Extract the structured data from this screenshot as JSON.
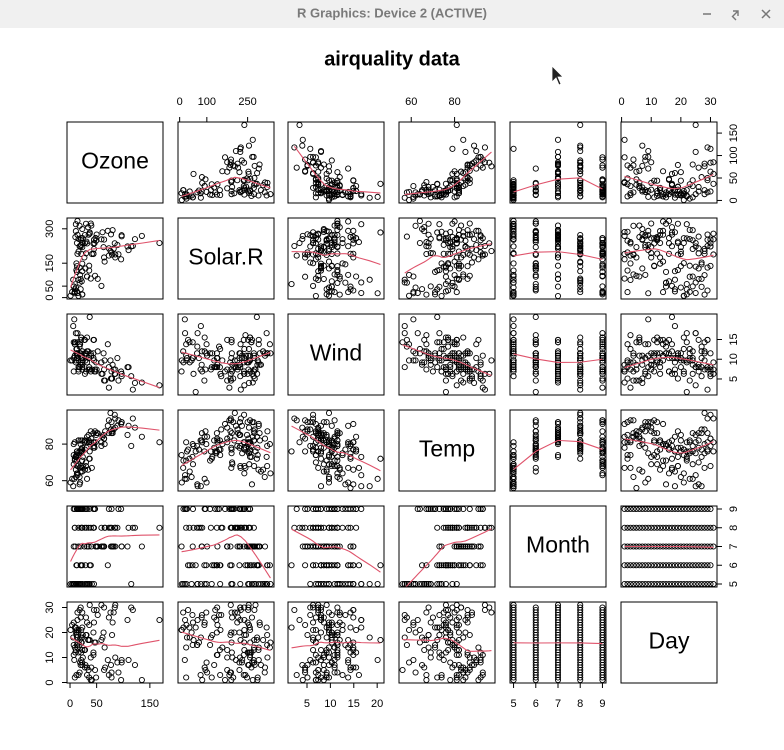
{
  "window": {
    "title": "R Graphics: Device 2 (ACTIVE)"
  },
  "chart_data": {
    "type": "pairs",
    "title": "airquality data",
    "point_color": "#000000",
    "smooth_color": "#df536b",
    "variables": [
      {
        "name": "Ozone",
        "lim": [
          -5.68,
          174.68
        ],
        "xticks": [
          0,
          50,
          150
        ],
        "yticks": [
          0,
          50,
          100,
          150
        ],
        "values": [
          41,
          36,
          12,
          18,
          null,
          28,
          23,
          19,
          8,
          null,
          7,
          16,
          11,
          14,
          18,
          14,
          34,
          6,
          30,
          11,
          1,
          11,
          4,
          32,
          null,
          null,
          null,
          23,
          45,
          115,
          37,
          null,
          null,
          null,
          null,
          null,
          null,
          29,
          null,
          71,
          39,
          null,
          null,
          23,
          null,
          null,
          21,
          37,
          20,
          12,
          13,
          null,
          null,
          null,
          null,
          null,
          null,
          null,
          null,
          null,
          null,
          135,
          49,
          32,
          null,
          64,
          40,
          77,
          97,
          97,
          85,
          null,
          10,
          27,
          null,
          7,
          48,
          35,
          61,
          79,
          63,
          16,
          null,
          null,
          80,
          108,
          20,
          52,
          82,
          50,
          64,
          59,
          39,
          9,
          16,
          78,
          35,
          66,
          122,
          89,
          110,
          null,
          null,
          44,
          28,
          65,
          null,
          22,
          59,
          23,
          31,
          44,
          21,
          9,
          null,
          45,
          168,
          73,
          null,
          76,
          118,
          84,
          85,
          96,
          78,
          73,
          91,
          47,
          32,
          20,
          23,
          21,
          24,
          44,
          21,
          28,
          9,
          13,
          46,
          18,
          13,
          24,
          16,
          13,
          23,
          36,
          7,
          14,
          30,
          null,
          14,
          18,
          20
        ]
      },
      {
        "name": "Solar.R",
        "lim": [
          -6.08,
          347.08
        ],
        "xticks": [
          0,
          100,
          250
        ],
        "yticks": [
          0,
          50,
          150,
          300
        ],
        "values": [
          190,
          118,
          149,
          313,
          null,
          null,
          299,
          99,
          19,
          194,
          null,
          256,
          290,
          274,
          65,
          334,
          307,
          78,
          322,
          44,
          8,
          320,
          25,
          92,
          66,
          266,
          null,
          13,
          252,
          223,
          279,
          286,
          287,
          242,
          186,
          220,
          264,
          127,
          273,
          291,
          323,
          259,
          250,
          148,
          332,
          322,
          191,
          284,
          37,
          120,
          137,
          150,
          59,
          91,
          250,
          135,
          127,
          47,
          98,
          31,
          138,
          269,
          248,
          236,
          101,
          175,
          314,
          276,
          267,
          272,
          175,
          139,
          264,
          175,
          291,
          48,
          260,
          274,
          285,
          187,
          220,
          7,
          258,
          295,
          294,
          223,
          81,
          82,
          213,
          275,
          253,
          254,
          83,
          24,
          77,
          null,
          null,
          null,
          255,
          229,
          207,
          222,
          137,
          192,
          273,
          157,
          64,
          71,
          51,
          115,
          244,
          190,
          259,
          36,
          255,
          212,
          238,
          215,
          153,
          203,
          225,
          237,
          188,
          167,
          197,
          183,
          189,
          95,
          92,
          252,
          220,
          230,
          259,
          236,
          259,
          238,
          24,
          112,
          237,
          224,
          27,
          238,
          201,
          238,
          14,
          139,
          49,
          20,
          193,
          145,
          191,
          131,
          223
        ]
      },
      {
        "name": "Wind",
        "lim": [
          0.94,
          21.46
        ],
        "xticks": [
          5,
          10,
          15,
          20
        ],
        "yticks": [
          5,
          10,
          15
        ],
        "values": [
          7.4,
          8.0,
          12.6,
          11.5,
          14.3,
          14.9,
          8.6,
          13.8,
          20.1,
          8.6,
          6.9,
          9.7,
          9.2,
          10.9,
          13.2,
          11.5,
          12.0,
          18.4,
          11.5,
          9.7,
          9.7,
          16.6,
          9.7,
          12.0,
          16.6,
          14.9,
          8.0,
          12.0,
          14.9,
          5.7,
          7.4,
          8.6,
          9.7,
          16.1,
          9.2,
          8.6,
          14.3,
          9.7,
          6.9,
          13.8,
          11.5,
          10.9,
          9.2,
          8.0,
          13.8,
          11.5,
          14.9,
          20.7,
          9.2,
          11.5,
          10.3,
          6.3,
          1.7,
          4.6,
          6.3,
          8.0,
          8.0,
          10.3,
          11.5,
          14.9,
          8.0,
          4.1,
          9.2,
          9.2,
          10.9,
          4.6,
          10.9,
          5.1,
          6.3,
          5.7,
          7.4,
          8.6,
          14.3,
          14.9,
          14.9,
          14.3,
          6.9,
          10.3,
          6.3,
          5.1,
          11.5,
          6.9,
          9.7,
          11.5,
          8.6,
          8.0,
          8.6,
          12.0,
          7.4,
          7.4,
          7.4,
          9.2,
          6.9,
          13.8,
          7.4,
          6.9,
          7.4,
          4.6,
          4.0,
          10.3,
          8.0,
          8.6,
          11.5,
          11.5,
          11.5,
          9.7,
          11.5,
          10.3,
          6.3,
          7.4,
          10.9,
          10.3,
          15.5,
          14.3,
          12.6,
          9.7,
          3.4,
          8.0,
          5.7,
          9.7,
          2.3,
          6.3,
          6.3,
          6.9,
          5.1,
          2.8,
          4.6,
          7.4,
          15.5,
          10.9,
          10.3,
          10.9,
          9.7,
          14.9,
          15.5,
          6.3,
          10.9,
          11.5,
          6.9,
          13.8,
          10.3,
          10.3,
          8.0,
          12.6,
          9.2,
          10.3,
          10.3,
          16.6,
          6.9,
          13.2,
          14.3,
          8.0,
          11.5
        ]
      },
      {
        "name": "Temp",
        "lim": [
          54.36,
          98.64
        ],
        "xticks": [
          60,
          80
        ],
        "yticks": [
          60,
          80
        ],
        "values": [
          67,
          72,
          74,
          62,
          56,
          66,
          65,
          59,
          61,
          69,
          74,
          69,
          66,
          68,
          58,
          64,
          66,
          57,
          68,
          62,
          59,
          73,
          61,
          61,
          57,
          58,
          57,
          67,
          81,
          79,
          76,
          78,
          74,
          67,
          84,
          85,
          79,
          82,
          87,
          90,
          87,
          93,
          92,
          82,
          80,
          79,
          77,
          72,
          65,
          73,
          76,
          77,
          76,
          76,
          76,
          75,
          78,
          73,
          80,
          77,
          83,
          84,
          85,
          81,
          84,
          83,
          83,
          88,
          92,
          92,
          89,
          82,
          73,
          81,
          91,
          80,
          81,
          82,
          84,
          87,
          85,
          74,
          81,
          82,
          86,
          85,
          82,
          86,
          88,
          86,
          83,
          81,
          81,
          81,
          82,
          86,
          85,
          87,
          89,
          90,
          90,
          92,
          86,
          86,
          82,
          80,
          79,
          77,
          79,
          76,
          78,
          78,
          77,
          72,
          75,
          79,
          81,
          86,
          88,
          97,
          94,
          96,
          94,
          91,
          92,
          93,
          93,
          87,
          84,
          80,
          78,
          75,
          73,
          81,
          76,
          77,
          71,
          71,
          78,
          67,
          76,
          68,
          82,
          64,
          71,
          81,
          69,
          63,
          70,
          77,
          75,
          76,
          68
        ]
      },
      {
        "name": "Month",
        "lim": [
          4.84,
          9.16
        ],
        "xticks": [
          5,
          6,
          7,
          8,
          9
        ],
        "yticks": [
          5,
          6,
          7,
          8,
          9
        ],
        "values": [
          5,
          5,
          5,
          5,
          5,
          5,
          5,
          5,
          5,
          5,
          5,
          5,
          5,
          5,
          5,
          5,
          5,
          5,
          5,
          5,
          5,
          5,
          5,
          5,
          5,
          5,
          5,
          5,
          5,
          5,
          5,
          6,
          6,
          6,
          6,
          6,
          6,
          6,
          6,
          6,
          6,
          6,
          6,
          6,
          6,
          6,
          6,
          6,
          6,
          6,
          6,
          6,
          6,
          6,
          6,
          6,
          6,
          6,
          6,
          6,
          6,
          7,
          7,
          7,
          7,
          7,
          7,
          7,
          7,
          7,
          7,
          7,
          7,
          7,
          7,
          7,
          7,
          7,
          7,
          7,
          7,
          7,
          7,
          7,
          7,
          7,
          7,
          7,
          7,
          7,
          7,
          7,
          8,
          8,
          8,
          8,
          8,
          8,
          8,
          8,
          8,
          8,
          8,
          8,
          8,
          8,
          8,
          8,
          8,
          8,
          8,
          8,
          8,
          8,
          8,
          8,
          8,
          8,
          8,
          8,
          8,
          8,
          8,
          9,
          9,
          9,
          9,
          9,
          9,
          9,
          9,
          9,
          9,
          9,
          9,
          9,
          9,
          9,
          9,
          9,
          9,
          9,
          9,
          9,
          9,
          9,
          9,
          9,
          9,
          9,
          9,
          9,
          9
        ]
      },
      {
        "name": "Day",
        "lim": [
          -0.2,
          32.2
        ],
        "xticks": [
          0,
          10,
          20,
          30
        ],
        "yticks": [
          0,
          10,
          20,
          30
        ],
        "values": [
          1,
          2,
          3,
          4,
          5,
          6,
          7,
          8,
          9,
          10,
          11,
          12,
          13,
          14,
          15,
          16,
          17,
          18,
          19,
          20,
          21,
          22,
          23,
          24,
          25,
          26,
          27,
          28,
          29,
          30,
          31,
          1,
          2,
          3,
          4,
          5,
          6,
          7,
          8,
          9,
          10,
          11,
          12,
          13,
          14,
          15,
          16,
          17,
          18,
          19,
          20,
          21,
          22,
          23,
          24,
          25,
          26,
          27,
          28,
          29,
          30,
          1,
          2,
          3,
          4,
          5,
          6,
          7,
          8,
          9,
          10,
          11,
          12,
          13,
          14,
          15,
          16,
          17,
          18,
          19,
          20,
          21,
          22,
          23,
          24,
          25,
          26,
          27,
          28,
          29,
          30,
          31,
          1,
          2,
          3,
          4,
          5,
          6,
          7,
          8,
          9,
          10,
          11,
          12,
          13,
          14,
          15,
          16,
          17,
          18,
          19,
          20,
          21,
          22,
          23,
          24,
          25,
          26,
          27,
          28,
          29,
          30,
          31,
          1,
          2,
          3,
          4,
          5,
          6,
          7,
          8,
          9,
          10,
          11,
          12,
          13,
          14,
          15,
          16,
          17,
          18,
          19,
          20,
          21,
          22,
          23,
          24,
          25,
          26,
          27,
          28,
          29,
          30
        ]
      }
    ]
  }
}
